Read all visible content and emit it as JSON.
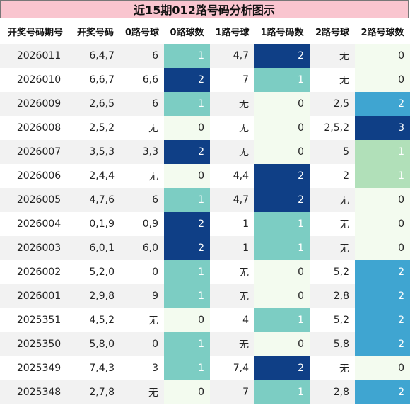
{
  "title": "近15期012路号码分析图示",
  "headers": [
    "开奖号码期号",
    "开奖号码",
    "0路号球",
    "0路球数",
    "1路号球",
    "1路号码数",
    "2路号球",
    "2路号球数"
  ],
  "rows": [
    {
      "period": "2026011",
      "numbers": "6,4,7",
      "r0": "6",
      "r0n": "1",
      "r1": "4,7",
      "r1n": "2",
      "r2": "无",
      "r2n": "0"
    },
    {
      "period": "2026010",
      "numbers": "6,6,7",
      "r0": "6,6",
      "r0n": "2",
      "r1": "7",
      "r1n": "1",
      "r2": "无",
      "r2n": "0"
    },
    {
      "period": "2026009",
      "numbers": "2,6,5",
      "r0": "6",
      "r0n": "1",
      "r1": "无",
      "r1n": "0",
      "r2": "2,5",
      "r2n": "2"
    },
    {
      "period": "2026008",
      "numbers": "2,5,2",
      "r0": "无",
      "r0n": "0",
      "r1": "无",
      "r1n": "0",
      "r2": "2,5,2",
      "r2n": "3"
    },
    {
      "period": "2026007",
      "numbers": "3,5,3",
      "r0": "3,3",
      "r0n": "2",
      "r1": "无",
      "r1n": "0",
      "r2": "5",
      "r2n": "1"
    },
    {
      "period": "2026006",
      "numbers": "2,4,4",
      "r0": "无",
      "r0n": "0",
      "r1": "4,4",
      "r1n": "2",
      "r2": "2",
      "r2n": "1"
    },
    {
      "period": "2026005",
      "numbers": "4,7,6",
      "r0": "6",
      "r0n": "1",
      "r1": "4,7",
      "r1n": "2",
      "r2": "无",
      "r2n": "0"
    },
    {
      "period": "2026004",
      "numbers": "0,1,9",
      "r0": "0,9",
      "r0n": "2",
      "r1": "1",
      "r1n": "1",
      "r2": "无",
      "r2n": "0"
    },
    {
      "period": "2026003",
      "numbers": "6,0,1",
      "r0": "6,0",
      "r0n": "2",
      "r1": "1",
      "r1n": "1",
      "r2": "无",
      "r2n": "0"
    },
    {
      "period": "2026002",
      "numbers": "5,2,0",
      "r0": "0",
      "r0n": "1",
      "r1": "无",
      "r1n": "0",
      "r2": "5,2",
      "r2n": "2"
    },
    {
      "period": "2026001",
      "numbers": "2,9,8",
      "r0": "9",
      "r0n": "1",
      "r1": "无",
      "r1n": "0",
      "r2": "2,8",
      "r2n": "2"
    },
    {
      "period": "2025351",
      "numbers": "4,5,2",
      "r0": "无",
      "r0n": "0",
      "r1": "4",
      "r1n": "1",
      "r2": "5,2",
      "r2n": "2"
    },
    {
      "period": "2025350",
      "numbers": "5,8,0",
      "r0": "0",
      "r0n": "1",
      "r1": "无",
      "r1n": "0",
      "r2": "5,8",
      "r2n": "2"
    },
    {
      "period": "2025349",
      "numbers": "7,4,3",
      "r0": "3",
      "r0n": "1",
      "r1": "7,4",
      "r1n": "2",
      "r2": "无",
      "r2n": "0"
    },
    {
      "period": "2025348",
      "numbers": "2,7,8",
      "r0": "无",
      "r0n": "0",
      "r1": "7",
      "r1n": "1",
      "r2": "2,8",
      "r2n": "2"
    }
  ],
  "colors": {
    "title_bg": "#f9c5cf",
    "row_alt": "#f2f2f2",
    "count_0": "#f3fbef",
    "r0_1": "#7ccdc3",
    "r0_2": "#0f3f86",
    "r1_1": "#7ccdc3",
    "r1_2": "#0f3f86",
    "r2_1": "#b1e0b9",
    "r2_2": "#3fa5d1",
    "r2_3": "#0f3f86"
  }
}
